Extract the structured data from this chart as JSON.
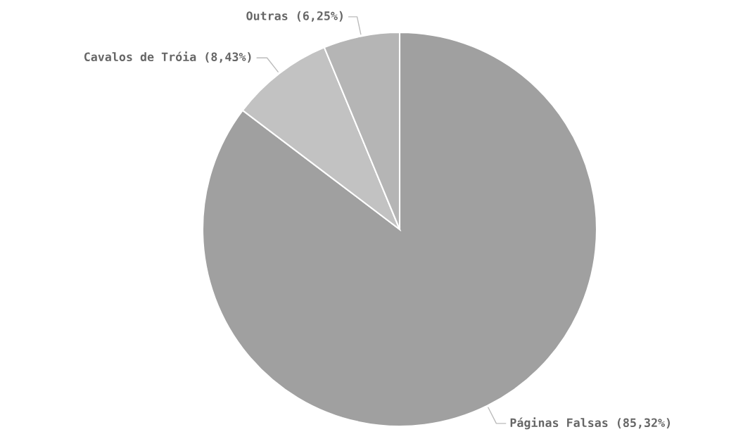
{
  "chart_data": {
    "type": "pie",
    "categories": [
      "Páginas Falsas (85,32%)",
      "Cavalos de Tróia (8,43%)",
      "Outras (6,25%)"
    ],
    "values": [
      85.32,
      8.43,
      6.25
    ],
    "colors": [
      "#a0a0a0",
      "#c2c2c2",
      "#b5b5b5"
    ],
    "legend": false
  }
}
